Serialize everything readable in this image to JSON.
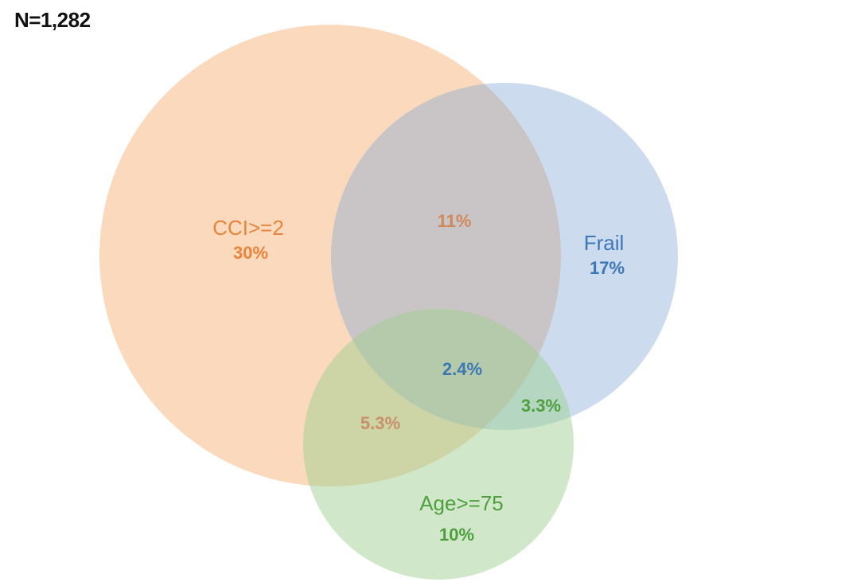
{
  "total_label": "N=1,282",
  "colors": {
    "cci": "#f4a460",
    "frail": "#7fa8d4",
    "age": "#9ccf8e",
    "cci_text": "#e8843c",
    "frail_text": "#3d78b6",
    "age_text": "#4e9f3d",
    "overlap_cci_frail_text": "#d0885a",
    "overlap_center_text": "#3d78b6",
    "overlap_cci_age_text": "#c9906a",
    "overlap_frail_age_text": "#4e9f3d"
  },
  "sets": {
    "cci": {
      "name": "CCI>=2",
      "pct": "30%"
    },
    "frail": {
      "name": "Frail",
      "pct": "17%"
    },
    "age": {
      "name": "Age>=75",
      "pct": "10%"
    }
  },
  "overlaps": {
    "cci_frail": "11%",
    "cci_frail_age": "2.4%",
    "cci_age": "5.3%",
    "frail_age": "3.3%"
  }
}
